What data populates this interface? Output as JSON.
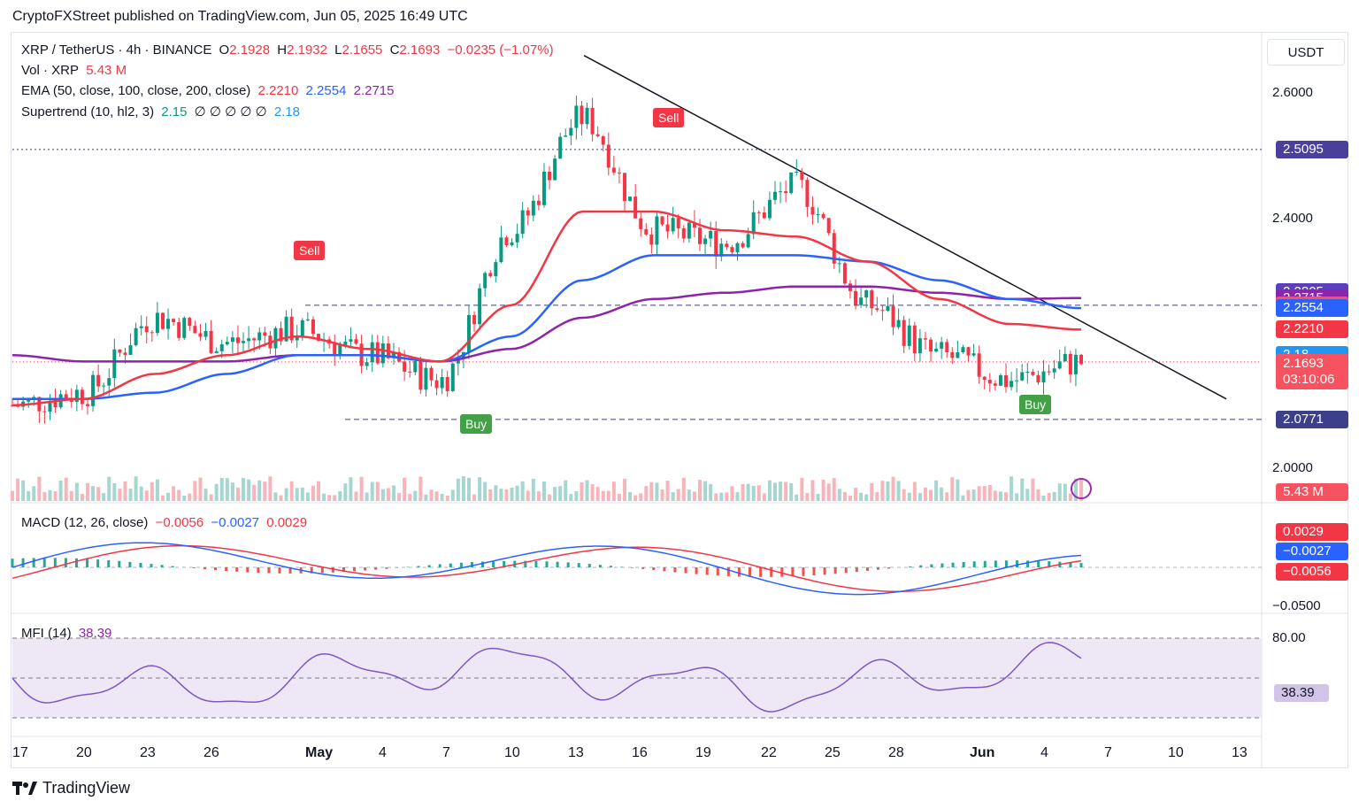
{
  "header": "CryptoFXStreet published on TradingView.com, Jun 05, 2025 16:49 UTC",
  "quote_currency": "USDT",
  "legend": {
    "symbol": "XRP / TetherUS · 4h · BINANCE",
    "o_label": "O",
    "o": "2.1928",
    "h_label": "H",
    "h": "2.1932",
    "l_label": "L",
    "l": "2.1655",
    "c_label": "C",
    "c": "2.1693",
    "change": "−0.0235 (−1.07%)",
    "vol_label": "Vol · XRP",
    "vol": "5.43 M",
    "ema_label": "EMA (50, close, 100, close, 200, close)",
    "ema50": "2.2210",
    "ema100": "2.2554",
    "ema200": "2.2715",
    "st_label": "Supertrend (10, hl2, 3)",
    "st_up": "2.15",
    "st_na": "∅ ∅ ∅ ∅ ∅",
    "st_down": "2.18"
  },
  "price_scale": {
    "ticks": [
      "2.6000",
      "2.4000",
      "2.0000"
    ],
    "badges": [
      {
        "text": "2.5095",
        "color": "#4a3f9a",
        "price": 2.5095
      },
      {
        "text": "2.2805",
        "color": "#5b3fbf",
        "price": 2.2805
      },
      {
        "text": "2.2715",
        "color": "#8e24aa",
        "price": 2.2715
      },
      {
        "text": "2.26",
        "color": "#f7525f",
        "price": 2.26
      },
      {
        "text": "2.2554",
        "color": "#2962ff",
        "price": 2.2554
      },
      {
        "text": "2.2210",
        "color": "#f23645",
        "price": 2.221
      },
      {
        "text": "2.18",
        "color": "#2196f3",
        "price": 2.18
      },
      {
        "text": "2.1693",
        "color": "#f7525f",
        "price": 2.1693
      },
      {
        "text": "2.15",
        "color": "#43a047",
        "price": 2.15
      },
      {
        "text": "2.0771",
        "color": "#3c3f8a",
        "price": 2.0771
      }
    ],
    "countdown": "03:10:06",
    "volume_badge": "5.43 M"
  },
  "x_axis": [
    "17",
    "20",
    "23",
    "26",
    "May",
    "4",
    "7",
    "10",
    "13",
    "16",
    "19",
    "22",
    "25",
    "28",
    "Jun",
    "4",
    "7",
    "10",
    "13"
  ],
  "signals": {
    "sell": "Sell",
    "buy": "Buy"
  },
  "macd": {
    "label": "MACD (12, 26, close)",
    "hist": "−0.0056",
    "macd": "−0.0027",
    "signal": "0.0029",
    "scale_tick": "−0.0500",
    "badges": [
      {
        "text": "0.0029",
        "color": "#f23645"
      },
      {
        "text": "−0.0027",
        "color": "#2962ff"
      },
      {
        "text": "−0.0056",
        "color": "#f23645"
      }
    ]
  },
  "mfi": {
    "label": "MFI (14)",
    "value": "38.39",
    "ticks": [
      "80.00"
    ],
    "badge": "38.39"
  },
  "brand": "TradingView",
  "chart_data": {
    "type": "candlestick",
    "title": "XRP / TetherUS · 4h · BINANCE",
    "x_dates": [
      "17",
      "20",
      "23",
      "26",
      "May",
      "4",
      "7",
      "10",
      "13",
      "16",
      "19",
      "22",
      "25",
      "28",
      "Jun",
      "4"
    ],
    "approx_close": [
      2.1,
      2.12,
      2.24,
      2.2,
      2.22,
      2.18,
      2.14,
      2.38,
      2.56,
      2.38,
      2.36,
      2.45,
      2.26,
      2.18,
      2.14,
      2.1693
    ],
    "ema50_approx": [
      2.1,
      2.11,
      2.15,
      2.18,
      2.21,
      2.19,
      2.17,
      2.26,
      2.41,
      2.41,
      2.38,
      2.37,
      2.33,
      2.27,
      2.23,
      2.221
    ],
    "ema100_approx": [
      2.11,
      2.11,
      2.12,
      2.15,
      2.18,
      2.18,
      2.17,
      2.21,
      2.3,
      2.34,
      2.34,
      2.34,
      2.33,
      2.3,
      2.27,
      2.2554
    ],
    "ema200_approx": [
      2.18,
      2.17,
      2.17,
      2.17,
      2.18,
      2.18,
      2.17,
      2.19,
      2.24,
      2.27,
      2.28,
      2.29,
      2.29,
      2.28,
      2.27,
      2.2715
    ],
    "ylim": [
      1.95,
      2.68
    ],
    "levels": {
      "resistance_dashed": 2.26,
      "support_dashed": 2.0771,
      "dotted_top": 2.5095,
      "last_price": 2.1693
    },
    "trendline": {
      "from": [
        "13",
        2.66
      ],
      "to": [
        "10",
        2.11
      ]
    },
    "signals": [
      {
        "type": "Sell",
        "date": "29 Apr",
        "price": 2.31
      },
      {
        "type": "Buy",
        "date": "8 May",
        "price": 2.14
      },
      {
        "type": "Sell",
        "date": "17 May",
        "price": 2.5
      },
      {
        "type": "Buy",
        "date": "3 Jun",
        "price": 2.12
      }
    ]
  }
}
